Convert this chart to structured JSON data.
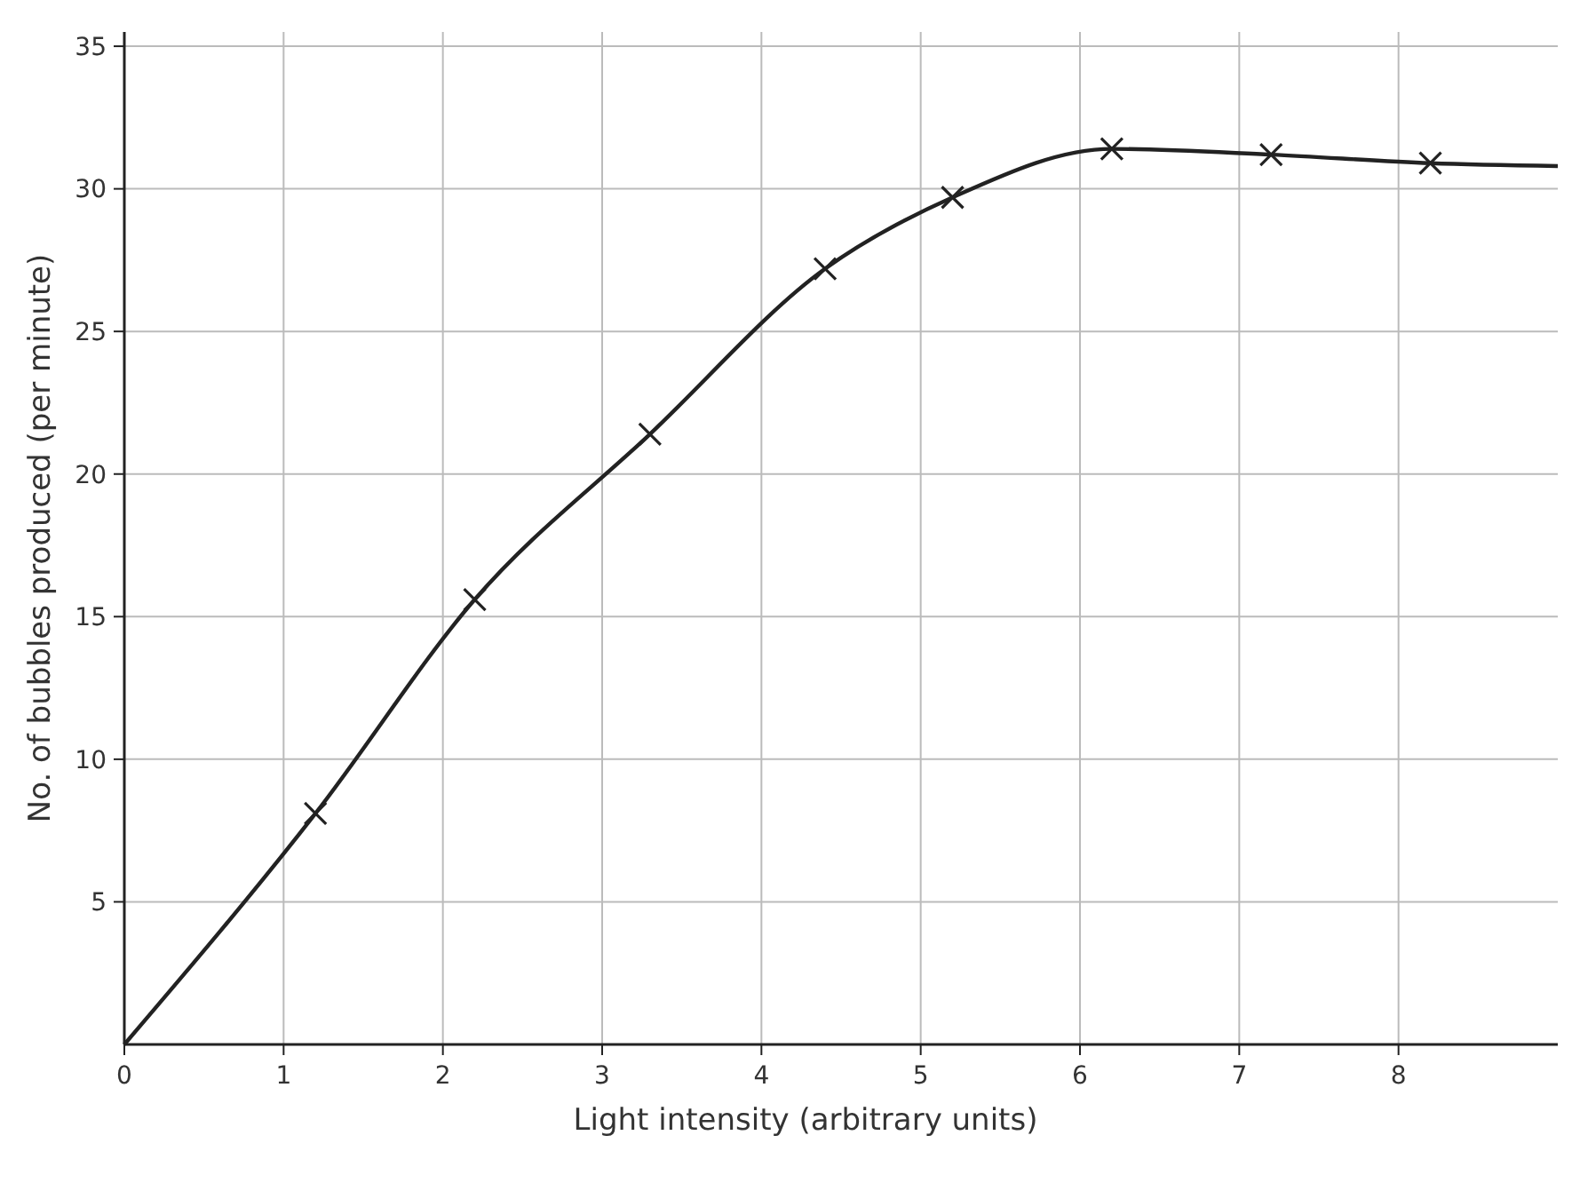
{
  "chart_data": {
    "type": "line",
    "xlabel": "Light intensity (arbitrary units)",
    "ylabel": "No. of bubbles produced (per minute)",
    "xlim": [
      0,
      9
    ],
    "ylim": [
      0,
      35.5
    ],
    "xticks": [
      0,
      1,
      2,
      3,
      4,
      5,
      6,
      7,
      8
    ],
    "yticks": [
      5,
      10,
      15,
      20,
      25,
      30,
      35
    ],
    "grid": true,
    "series": [
      {
        "color": "#222222",
        "marker": "none",
        "x": [
          0,
          1.2,
          2.2,
          3.3,
          4.4,
          5.2,
          6.2,
          7.2,
          8.2,
          9
        ],
        "values": [
          0,
          8.1,
          15.6,
          21.4,
          27.2,
          29.7,
          31.4,
          31.2,
          30.9,
          30.8
        ]
      },
      {
        "type": "scatter",
        "color": "#222222",
        "marker": "cross",
        "x": [
          1.2,
          2.2,
          3.3,
          4.4,
          5.2,
          6.2,
          7.2,
          8.2
        ],
        "values": [
          8.1,
          15.6,
          21.4,
          27.2,
          29.7,
          31.4,
          31.2,
          30.9
        ]
      }
    ]
  }
}
